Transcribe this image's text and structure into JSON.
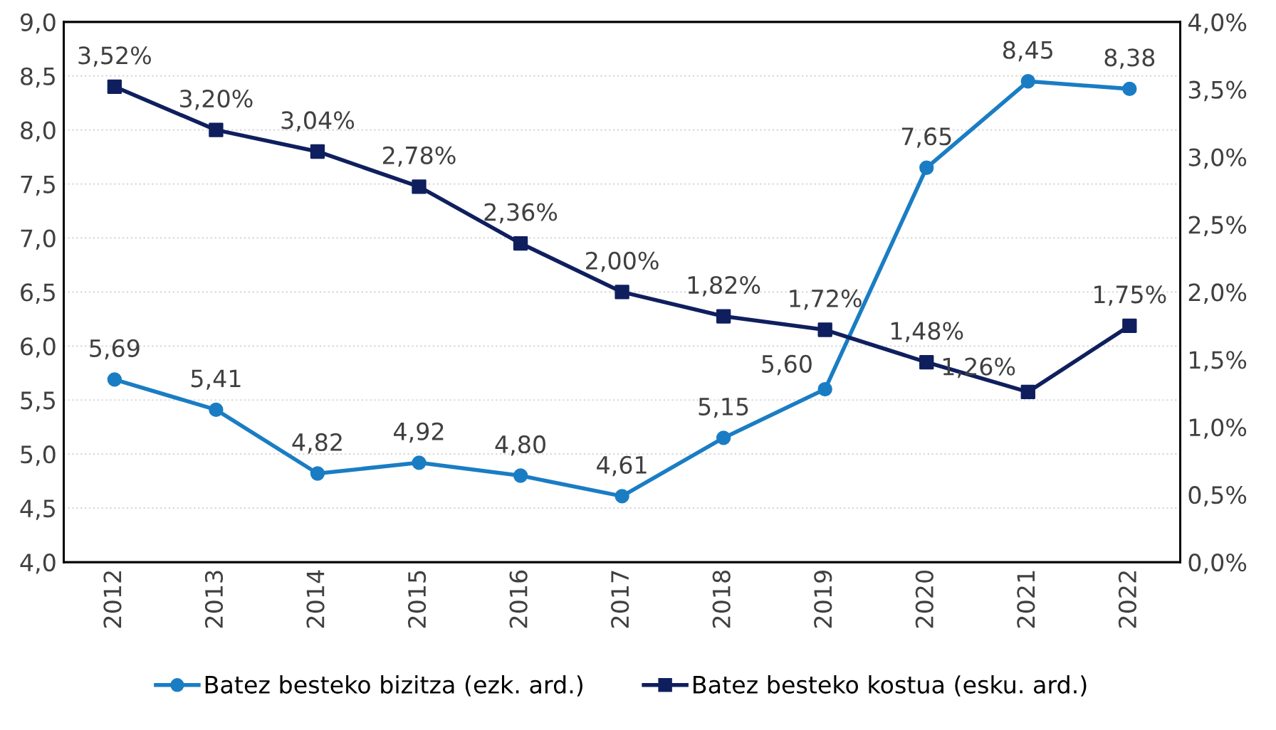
{
  "chart_data": {
    "type": "line",
    "categories": [
      "2012",
      "2013",
      "2014",
      "2015",
      "2016",
      "2017",
      "2018",
      "2019",
      "2020",
      "2021",
      "2022"
    ],
    "series": [
      {
        "name": "Batez besteko bizitza (ezk. ard.)",
        "color": "#1a7dc4",
        "marker": "circle",
        "values": [
          5.69,
          5.41,
          4.82,
          4.92,
          4.8,
          4.61,
          5.15,
          5.6,
          7.65,
          8.45,
          8.38
        ],
        "value_labels": [
          "5,69",
          "5,41",
          "4,82",
          "4,92",
          "4,80",
          "4,61",
          "5,15",
          "5,60",
          "7,65",
          "8,45",
          "8,38"
        ]
      },
      {
        "name": "Batez besteko kostua (esku. ard.)",
        "color": "#0f1f5e",
        "marker": "square",
        "axis": "y2",
        "values": [
          3.52,
          3.2,
          3.04,
          2.78,
          2.36,
          2.0,
          1.82,
          1.72,
          1.48,
          1.26,
          1.75
        ],
        "value_labels": [
          "3,52%",
          "3,20%",
          "3,04%",
          "2,78%",
          "2,36%",
          "2,00%",
          "1,82%",
          "1,72%",
          "1,48%",
          "1,26%",
          "1,75%"
        ]
      }
    ],
    "ylim": [
      4.0,
      9.0
    ],
    "yticks": [
      {
        "value": 4.0,
        "label": "4,0"
      },
      {
        "value": 4.5,
        "label": "4,5"
      },
      {
        "value": 5.0,
        "label": "5,0"
      },
      {
        "value": 5.5,
        "label": "5,5"
      },
      {
        "value": 6.0,
        "label": "6,0"
      },
      {
        "value": 6.5,
        "label": "6,5"
      },
      {
        "value": 7.0,
        "label": "7,0"
      },
      {
        "value": 7.5,
        "label": "7,5"
      },
      {
        "value": 8.0,
        "label": "8,0"
      },
      {
        "value": 8.5,
        "label": "8,5"
      },
      {
        "value": 9.0,
        "label": "9,0"
      }
    ],
    "y2lim": [
      0.0,
      4.0
    ],
    "y2ticks": [
      {
        "value": 0.0,
        "label": "0,0%"
      },
      {
        "value": 0.5,
        "label": "0,5%"
      },
      {
        "value": 1.0,
        "label": "1,0%"
      },
      {
        "value": 1.5,
        "label": "1,5%"
      },
      {
        "value": 2.0,
        "label": "2,0%"
      },
      {
        "value": 2.5,
        "label": "2,5%"
      },
      {
        "value": 3.0,
        "label": "3,0%"
      },
      {
        "value": 3.5,
        "label": "3,5%"
      },
      {
        "value": 4.0,
        "label": "4,0%"
      }
    ],
    "grid": "y",
    "legend": "bottom",
    "line_style": "solid"
  }
}
